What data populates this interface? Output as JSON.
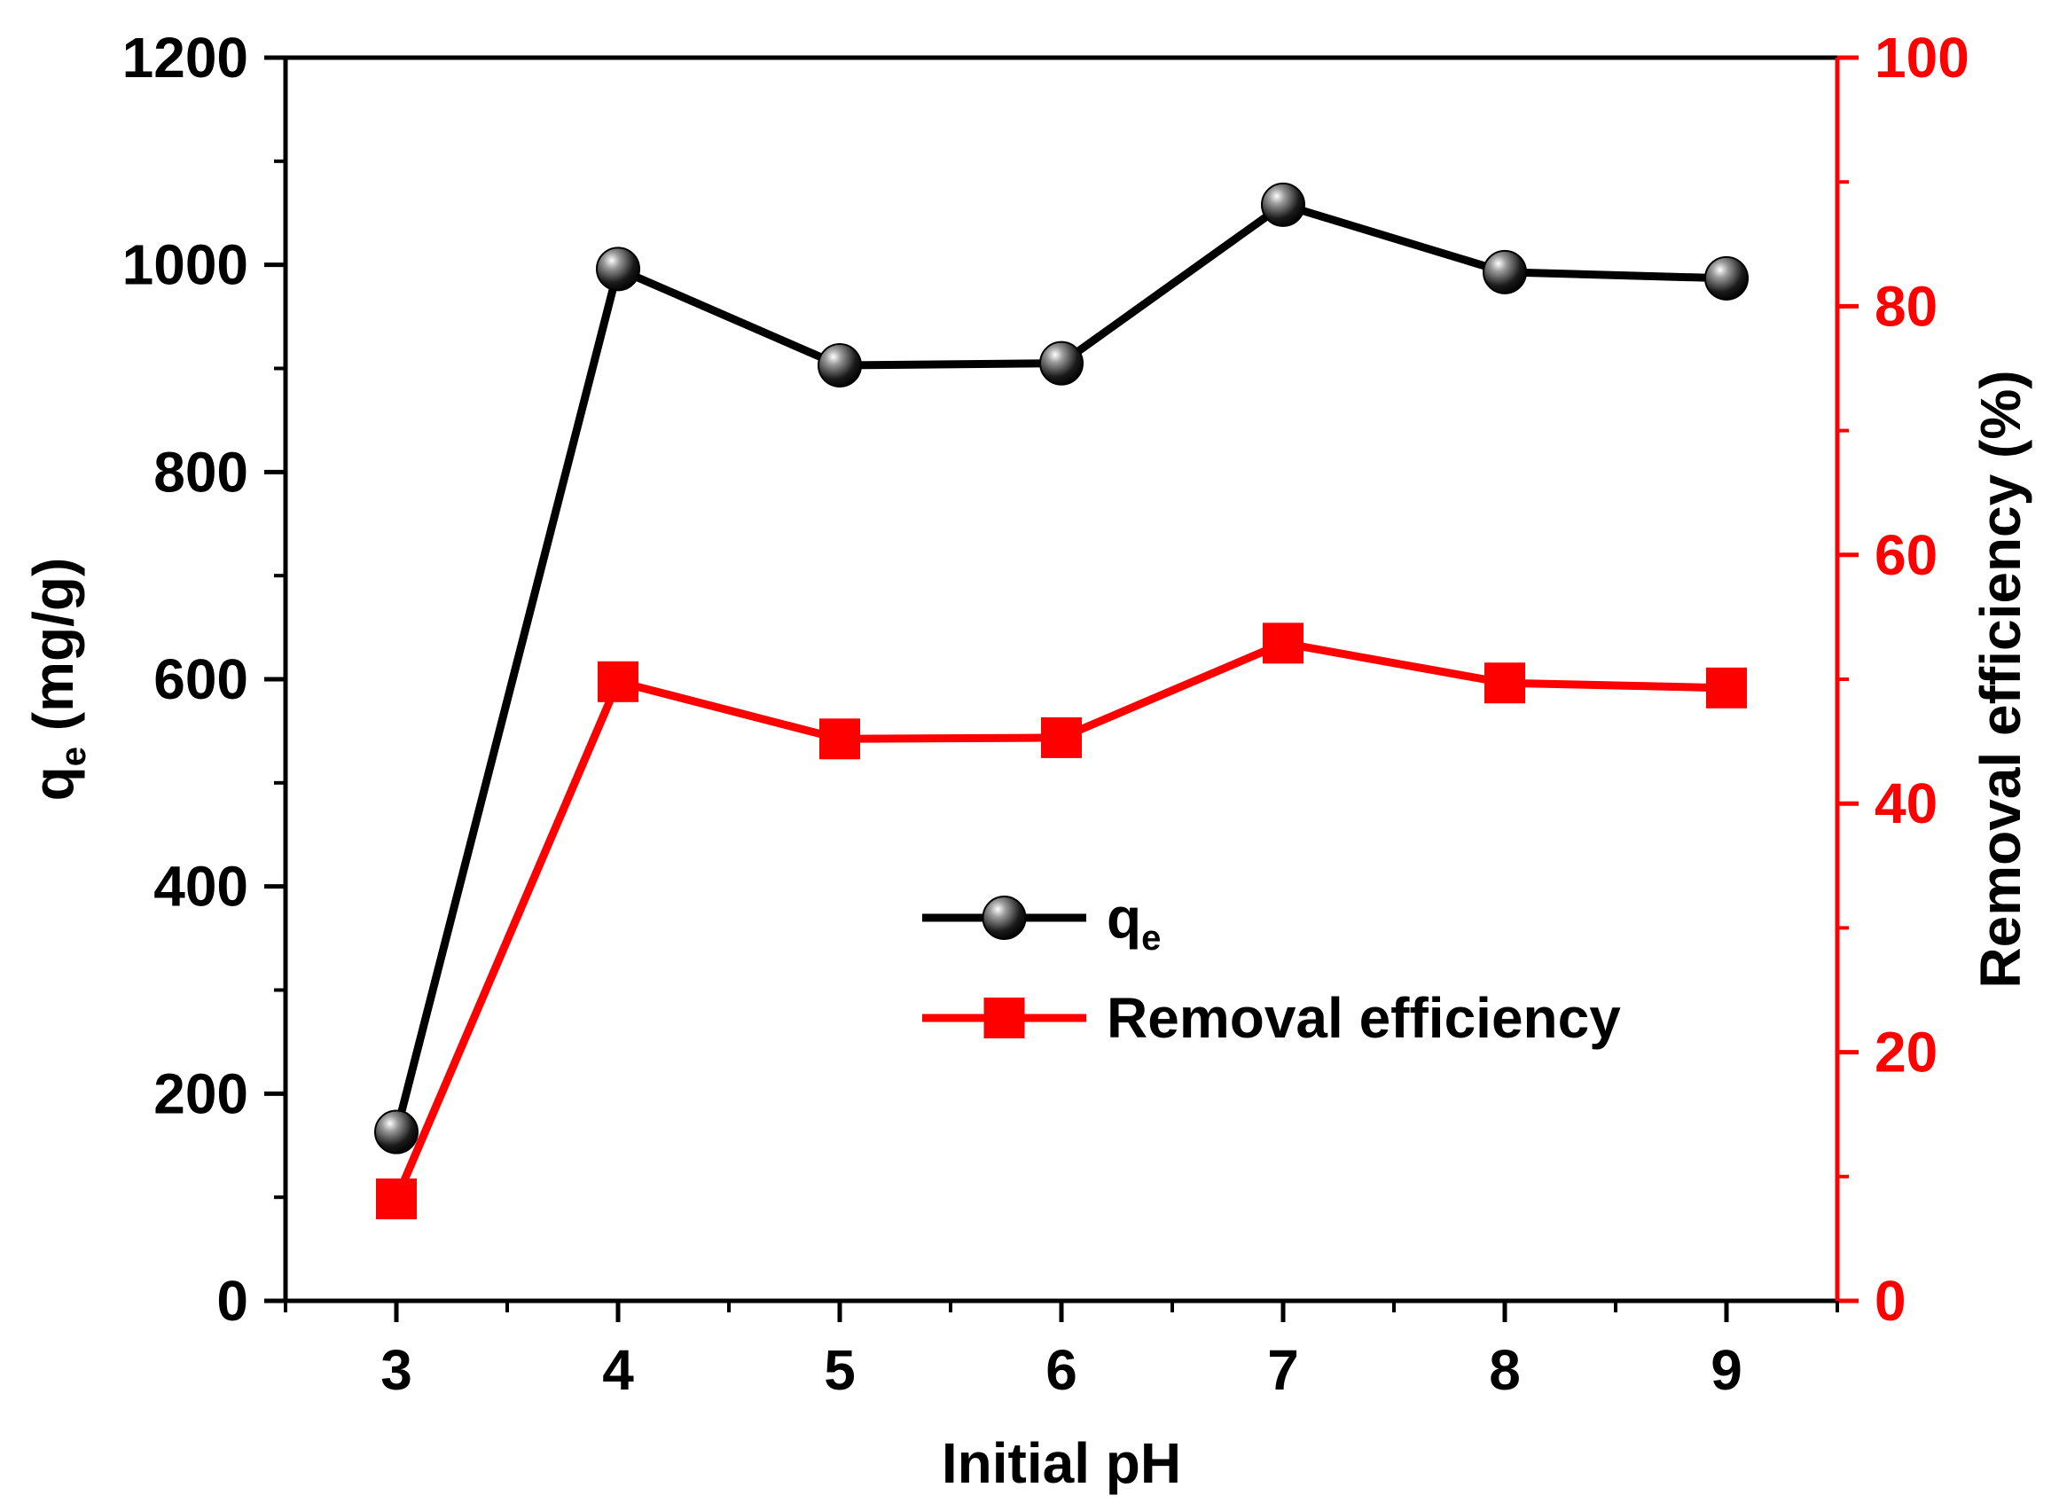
{
  "chart_data": {
    "type": "line",
    "x": [
      3,
      4,
      5,
      6,
      7,
      8,
      9
    ],
    "xlabel": "Initial pH",
    "xlim": [
      2.5,
      9.5
    ],
    "xticks": [
      3,
      4,
      5,
      6,
      7,
      8,
      9
    ],
    "series": [
      {
        "name": "q",
        "name_subscript": "e",
        "axis": "left",
        "color": "#000000",
        "marker": "sphere",
        "values": [
          163,
          996,
          903,
          905,
          1058,
          993,
          987
        ]
      },
      {
        "name": "Removal efficiency",
        "axis": "right",
        "color": "#ff0000",
        "marker": "square",
        "values": [
          8.2,
          49.8,
          45.2,
          45.3,
          52.9,
          49.7,
          49.3
        ]
      }
    ],
    "y_left": {
      "label": "q",
      "label_subscript": "e",
      "label_suffix": " (mg/g)",
      "ylim": [
        0,
        1200
      ],
      "ticks": [
        0,
        200,
        400,
        600,
        800,
        1000,
        1200
      ],
      "color": "#000000"
    },
    "y_right": {
      "label": "Removal efficiency (%)",
      "ylim": [
        0,
        100
      ],
      "ticks": [
        0,
        20,
        40,
        60,
        80,
        100
      ],
      "color": "#ff0000"
    },
    "legend_position": "center-right",
    "grid": false
  }
}
